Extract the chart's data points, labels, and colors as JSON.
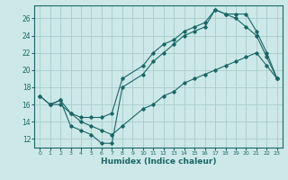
{
  "xlabel": "Humidex (Indice chaleur)",
  "background_color": "#cde8e8",
  "grid_color": "#a8cccc",
  "line_color": "#1a6666",
  "xlim": [
    -0.5,
    23.5
  ],
  "ylim": [
    11.0,
    27.5
  ],
  "yticks": [
    12,
    14,
    16,
    18,
    20,
    22,
    24,
    26
  ],
  "xticks": [
    0,
    1,
    2,
    3,
    4,
    5,
    6,
    7,
    8,
    9,
    10,
    11,
    12,
    13,
    14,
    15,
    16,
    17,
    18,
    19,
    20,
    21,
    22,
    23
  ],
  "line1_x": [
    0,
    1,
    2,
    3,
    4,
    5,
    6,
    7,
    8,
    10,
    11,
    12,
    13,
    14,
    15,
    16,
    17,
    18,
    19,
    20,
    21,
    22,
    23
  ],
  "line1_y": [
    17.0,
    16.0,
    16.5,
    13.5,
    13.0,
    12.5,
    11.5,
    11.5,
    18.0,
    19.5,
    21.0,
    22.0,
    23.0,
    24.0,
    24.5,
    25.0,
    27.0,
    26.5,
    26.0,
    25.0,
    24.0,
    21.5,
    19.0
  ],
  "line2_x": [
    0,
    1,
    2,
    3,
    4,
    5,
    6,
    7,
    8,
    10,
    11,
    12,
    13,
    14,
    15,
    16,
    17,
    18,
    19,
    20,
    21,
    22,
    23
  ],
  "line2_y": [
    17.0,
    16.0,
    16.0,
    15.0,
    14.5,
    14.5,
    14.5,
    15.0,
    19.0,
    20.5,
    22.0,
    23.0,
    23.5,
    24.5,
    25.0,
    25.5,
    27.0,
    26.5,
    26.5,
    26.5,
    24.5,
    22.0,
    19.0
  ],
  "line3_x": [
    1,
    2,
    3,
    4,
    5,
    6,
    7,
    8,
    10,
    11,
    12,
    13,
    14,
    15,
    16,
    17,
    18,
    19,
    20,
    21,
    22,
    23
  ],
  "line3_y": [
    16.0,
    16.5,
    15.0,
    14.0,
    13.5,
    13.0,
    12.5,
    13.5,
    15.5,
    16.0,
    17.0,
    17.5,
    18.5,
    19.0,
    19.5,
    20.0,
    20.5,
    21.0,
    21.5,
    22.0,
    20.5,
    19.0
  ]
}
